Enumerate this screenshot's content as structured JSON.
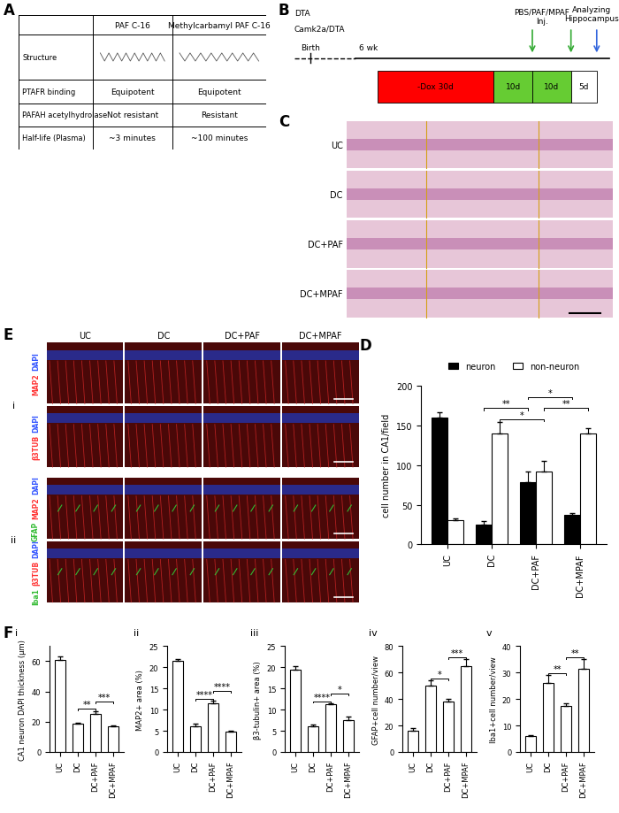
{
  "panels": {
    "A": {
      "label": "A",
      "table": {
        "columns": [
          "PAF C-16",
          "Methylcarbamyl PAF C-16"
        ],
        "rows": [
          [
            "Structure"
          ],
          [
            "PTAFR binding",
            "Equipotent",
            "Equipotent"
          ],
          [
            "PAFAH acetylhydrolase",
            "Not resistant",
            "Resistant"
          ],
          [
            "Half-life (Plasma)",
            "~3 minutes",
            "~100 minutes"
          ]
        ]
      }
    },
    "B": {
      "label": "B",
      "start": [
        "DTA",
        "Camk2a/DTA"
      ],
      "birth": "Birth",
      "age": "6 wk",
      "segments": [
        {
          "text": "-Dox 30d",
          "color": "#ff0000"
        },
        {
          "text": "10d",
          "color": "#66cc33"
        },
        {
          "text": "10d",
          "color": "#66cc33"
        },
        {
          "text": "5d",
          "color": "#ffffff"
        }
      ],
      "injection": [
        "PBS/PAF/MPAF",
        "Inj."
      ],
      "end": [
        "Analyzing",
        "Hippocampus"
      ]
    },
    "C": {
      "label": "C",
      "rows": [
        "UC",
        "DC",
        "DC+PAF",
        "DC+MPAF"
      ]
    },
    "D": {
      "label": "D"
    },
    "E": {
      "label": "E",
      "columns": [
        "UC",
        "DC",
        "DC+PAF",
        "DC+MPAF"
      ],
      "groups": [
        {
          "label": "i",
          "rows": [
            [
              {
                "text": "MAP2",
                "color": "#ff3333"
              },
              {
                "text": "DAPI",
                "color": "#3355ff"
              }
            ],
            [
              {
                "text": "β3TUB",
                "color": "#ff3333"
              },
              {
                "text": "DAPI",
                "color": "#3355ff"
              }
            ]
          ]
        },
        {
          "label": "ii",
          "rows": [
            [
              {
                "text": "GFAP",
                "color": "#33bb33"
              },
              {
                "text": "MAP2",
                "color": "#ff3333"
              },
              {
                "text": "DAPI",
                "color": "#3355ff"
              }
            ],
            [
              {
                "text": "Iba1",
                "color": "#33bb33"
              },
              {
                "text": "β3TUB",
                "color": "#ff3333"
              },
              {
                "text": "DAPI",
                "color": "#3355ff"
              }
            ]
          ]
        }
      ]
    },
    "F": {
      "label": "F"
    }
  },
  "chart_data": [
    {
      "type": "bar",
      "categories": [
        "UC",
        "DC",
        "DC+PAF",
        "DC+MPAF"
      ],
      "ylabel": "cell number in CA1/field",
      "ylim": [
        0,
        200
      ],
      "yticks": [
        0,
        50,
        100,
        150,
        200
      ],
      "grid": false,
      "legend": "upper center",
      "series": [
        {
          "name": "neuron",
          "color": "#000000",
          "values": [
            160,
            25,
            78,
            37
          ],
          "error": [
            7,
            4,
            14,
            3
          ]
        },
        {
          "name": "non-neuron",
          "color": "#ffffff",
          "values": [
            30,
            140,
            92,
            140
          ],
          "error": [
            3,
            14,
            13,
            6
          ]
        }
      ],
      "annotations": [
        {
          "text": "*",
          "from": [
            "DC",
            "non-neuron"
          ],
          "to": [
            "DC+PAF",
            "non-neuron"
          ]
        },
        {
          "text": "**",
          "from": [
            "DC+PAF",
            "non-neuron"
          ],
          "to": [
            "DC+MPAF",
            "non-neuron"
          ]
        },
        {
          "text": "**",
          "from": [
            "DC",
            "neuron"
          ],
          "to": [
            "DC+PAF",
            "neuron"
          ]
        },
        {
          "text": "*",
          "from": [
            "DC+PAF",
            "neuron"
          ],
          "to": [
            "DC+MPAF",
            "neuron"
          ]
        }
      ]
    },
    {
      "type": "bar",
      "title": "i",
      "categories": [
        "UC",
        "DC",
        "DC+PAF",
        "DC+MPAF"
      ],
      "ylabel": "CA1 neuron DAPI thickness (μm)",
      "ylim": [
        0,
        70
      ],
      "yticks": [
        0,
        20,
        40,
        60
      ],
      "grid": false,
      "color": "#ffffff",
      "values": [
        61,
        18.5,
        25,
        17
      ],
      "error": [
        2,
        1,
        2,
        0.8
      ],
      "annotations": [
        {
          "text": "**",
          "from": "DC",
          "to": "DC+PAF"
        },
        {
          "text": "***",
          "from": "DC+PAF",
          "to": "DC+MPAF"
        }
      ]
    },
    {
      "type": "bar",
      "title": "ii",
      "categories": [
        "UC",
        "DC",
        "DC+PAF",
        "DC+MPAF"
      ],
      "ylabel": "MAP2+ area (%)",
      "ylim": [
        0,
        25
      ],
      "yticks": [
        0,
        5,
        10,
        15,
        20,
        25
      ],
      "grid": false,
      "color": "#ffffff",
      "values": [
        21.5,
        6,
        11.5,
        4.8
      ],
      "error": [
        0.5,
        0.6,
        0.6,
        0.2
      ],
      "annotations": [
        {
          "text": "****",
          "from": "DC",
          "to": "DC+PAF"
        },
        {
          "text": "****",
          "from": "DC+PAF",
          "to": "DC+MPAF"
        }
      ]
    },
    {
      "type": "bar",
      "title": "iii",
      "categories": [
        "UC",
        "DC",
        "DC+PAF",
        "DC+MPAF"
      ],
      "ylabel": "β3-tubulin+ area (%)",
      "ylim": [
        0,
        25
      ],
      "yticks": [
        0,
        5,
        10,
        15,
        20,
        25
      ],
      "grid": false,
      "color": "#ffffff",
      "values": [
        19.5,
        6,
        11.2,
        7.5
      ],
      "error": [
        0.7,
        0.5,
        0.3,
        0.9
      ],
      "annotations": [
        {
          "text": "****",
          "from": "DC",
          "to": "DC+PAF"
        },
        {
          "text": "*",
          "from": "DC+PAF",
          "to": "DC+MPAF"
        }
      ]
    },
    {
      "type": "bar",
      "title": "iv",
      "categories": [
        "UC",
        "DC",
        "DC+PAF",
        "DC+MPAF"
      ],
      "ylabel": "GFAP+cell number/view",
      "ylim": [
        0,
        80
      ],
      "yticks": [
        0,
        20,
        40,
        60,
        80
      ],
      "grid": false,
      "color": "#ffffff",
      "values": [
        16,
        50,
        38,
        65
      ],
      "error": [
        2,
        4,
        2,
        5
      ],
      "annotations": [
        {
          "text": "*",
          "from": "DC",
          "to": "DC+PAF"
        },
        {
          "text": "***",
          "from": "DC+PAF",
          "to": "DC+MPAF"
        }
      ]
    },
    {
      "type": "bar",
      "title": "v",
      "categories": [
        "UC",
        "DC",
        "DC+PAF",
        "DC+MPAF"
      ],
      "ylabel": "Iba1+cell number/view",
      "ylim": [
        0,
        40
      ],
      "yticks": [
        0,
        10,
        20,
        30,
        40
      ],
      "grid": false,
      "color": "#ffffff",
      "values": [
        6,
        26,
        17.5,
        31.5
      ],
      "error": [
        0.5,
        3,
        1,
        3.5
      ],
      "annotations": [
        {
          "text": "**",
          "from": "DC",
          "to": "DC+PAF"
        },
        {
          "text": "**",
          "from": "DC+PAF",
          "to": "DC+MPAF"
        }
      ]
    }
  ]
}
